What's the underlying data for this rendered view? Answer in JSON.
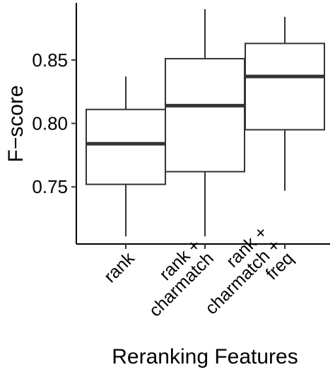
{
  "chart_data": {
    "type": "box",
    "xlabel": "Reranking Features",
    "ylabel": "F−score",
    "ylim": [
      0.705,
      0.895
    ],
    "yticks": [
      0.75,
      0.8,
      0.85
    ],
    "ytick_labels": [
      "0.75",
      "0.80",
      "0.85"
    ],
    "grid": false,
    "categories": [
      {
        "label_lines": [
          "rank"
        ]
      },
      {
        "label_lines": [
          "rank +",
          "charmatch"
        ]
      },
      {
        "label_lines": [
          "rank +",
          "charmatch +",
          "freq"
        ]
      }
    ],
    "boxes": [
      {
        "min": 0.711,
        "q1": 0.752,
        "median": 0.784,
        "q3": 0.811,
        "max": 0.837
      },
      {
        "min": 0.711,
        "q1": 0.762,
        "median": 0.814,
        "q3": 0.851,
        "max": 0.89
      },
      {
        "min": 0.747,
        "q1": 0.795,
        "median": 0.837,
        "q3": 0.863,
        "max": 0.884
      }
    ],
    "colors": {
      "stroke": "#333333",
      "axis": "#000000",
      "fill": "#ffffff"
    }
  }
}
